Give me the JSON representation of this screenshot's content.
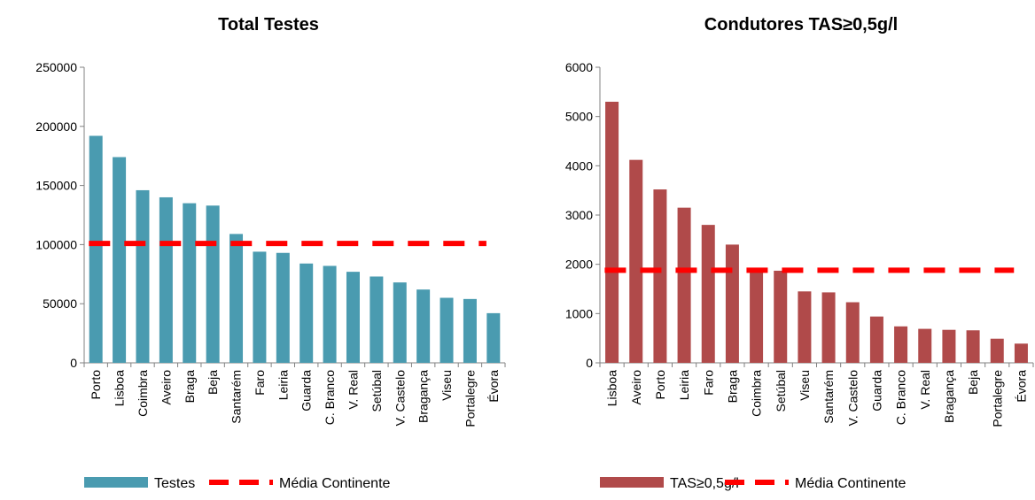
{
  "colors": {
    "teal": "#4a9bb0",
    "red": "#b04a4a",
    "dash": "#ff0000",
    "axis": "#808080"
  },
  "chart_data": [
    {
      "type": "bar",
      "title": "Total Testes",
      "categories": [
        "Porto",
        "Lisboa",
        "Coimbra",
        "Aveiro",
        "Braga",
        "Beja",
        "Santarém",
        "Faro",
        "Leiria",
        "Guarda",
        "C. Branco",
        "V. Real",
        "Setúbal",
        "V. Castelo",
        "Bragança",
        "Viseu",
        "Portalegre",
        "Évora"
      ],
      "series": [
        {
          "name": "Testes",
          "color": "#4a9bb0",
          "values": [
            192000,
            174000,
            146000,
            140000,
            135000,
            133000,
            109000,
            94000,
            93000,
            84000,
            82000,
            77000,
            73000,
            68000,
            62000,
            55000,
            54000,
            42000
          ]
        },
        {
          "name": "Média Continente",
          "color": "#ff0000",
          "style": "dashed",
          "value": 101000
        }
      ],
      "yticks": [
        0,
        50000,
        100000,
        150000,
        200000,
        250000
      ],
      "ylim": [
        0,
        250000
      ],
      "legend_position": "bottom"
    },
    {
      "type": "bar",
      "title": "Condutores TAS≥0,5g/l",
      "categories": [
        "Lisboa",
        "Aveiro",
        "Porto",
        "Leiria",
        "Faro",
        "Braga",
        "Coimbra",
        "Setúbal",
        "Viseu",
        "Santarém",
        "V. Castelo",
        "Guarda",
        "C. Branco",
        "V. Real",
        "Bragança",
        "Beja",
        "Portalegre",
        "Évora"
      ],
      "series": [
        {
          "name": "TAS≥0,5g/l",
          "color": "#b04a4a",
          "values": [
            5300,
            4120,
            3520,
            3150,
            2800,
            2400,
            1900,
            1870,
            1450,
            1430,
            1230,
            940,
            740,
            690,
            670,
            660,
            490,
            390
          ]
        },
        {
          "name": "Média Continente",
          "color": "#ff0000",
          "style": "dashed",
          "value": 1880
        }
      ],
      "yticks": [
        0,
        1000,
        2000,
        3000,
        4000,
        5000,
        6000
      ],
      "ylim": [
        0,
        6000
      ],
      "legend_position": "bottom"
    }
  ]
}
